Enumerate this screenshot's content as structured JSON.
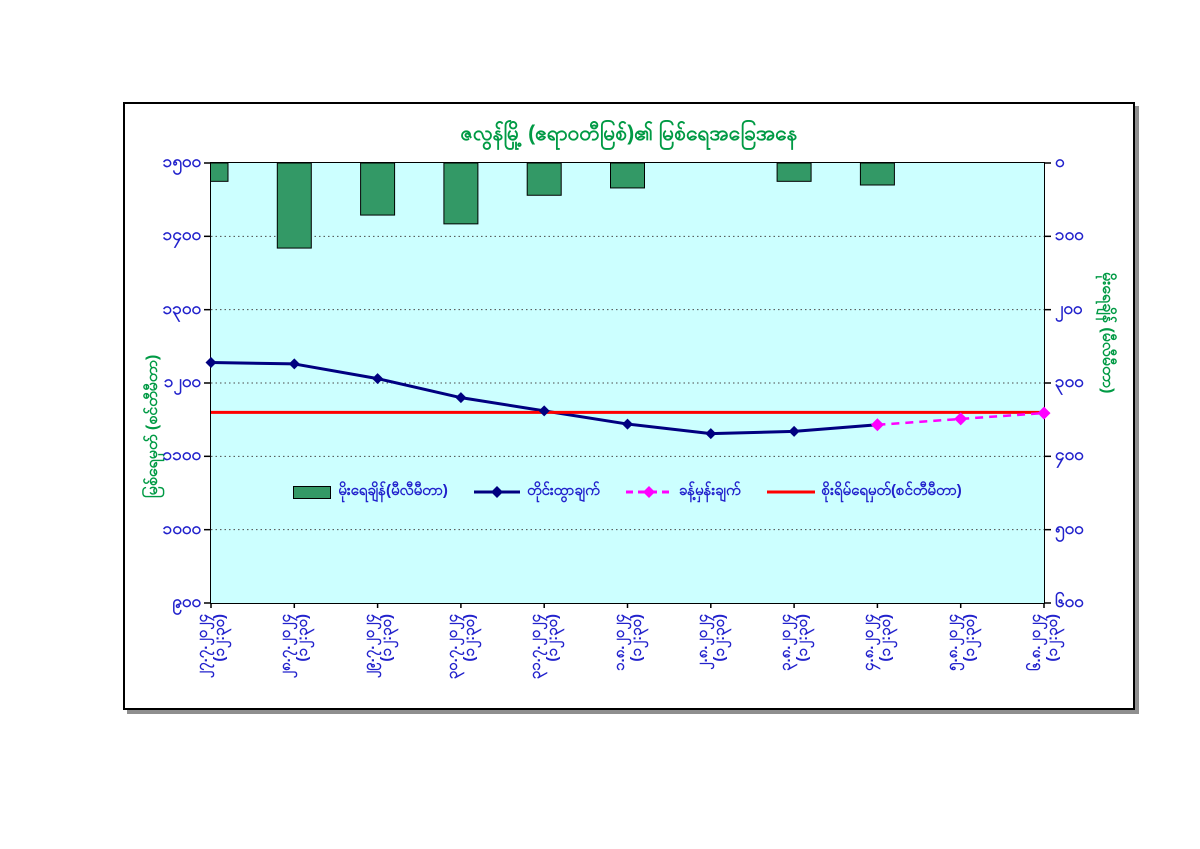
{
  "colors": {
    "title_green": "#009A44",
    "axis_label_blue": "#2222CC",
    "plot_background": "#CCFFFF",
    "bar_green": "#339966",
    "observed_navy": "#000080",
    "forecast_magenta": "#FF00FF",
    "danger_red": "#FF0000"
  },
  "chart_data": {
    "type": "bar+line combo",
    "title": "ဇလွန်မြို့ (ဧရာဝတီမြစ်)၏ မြစ်ရေအခြေအနေ",
    "plot_background": "#CCFFFF",
    "grid": "horizontal dotted lines every 100 units",
    "legend_position": "inside bottom center",
    "categories": [
      "၂၇.၇.၂၀၂၄",
      "၂၈.၇.၂၀၂၄",
      "၂၉.၇.၂၀၂၄",
      "၃၀.၇.၂၀၂၄",
      "၃၁.၇.၂၀၂၄",
      "၁.၈.၂၀၂၄",
      "၂.၈.၂၀၂၄",
      "၃.၈.၂၀၂၄",
      "၄.၈.၂၀၂၄",
      "၅.၈.၂၀၂၄",
      "၆.၈.၂၀၂၄"
    ],
    "category_time_sublabel": "(၁၂:၃၀)",
    "x_tick_label_rotation_deg": 90,
    "left_axis": {
      "title": "မြစ်ရေမှတ် (စင်တီမီတာ)",
      "min": 900,
      "max": 1500,
      "step": 100,
      "tick_labels": [
        "၁၅၀၀",
        "၁၄၀၀",
        "၁၃၀၀",
        "၁၂၀၀",
        "၁၁၀၀",
        "၁၀၀၀",
        "၉၀၀"
      ]
    },
    "right_axis": {
      "title": "မိုးရေချိန် (မီလီမီတာ)",
      "min": 0,
      "max": 600,
      "step": 100,
      "direction": "increases downward (bars hang from top)",
      "tick_labels": [
        "၀",
        "၁၀၀",
        "၂၀၀",
        "၃၀၀",
        "၄၀၀",
        "၅၀၀",
        "၆၀၀"
      ]
    },
    "series": [
      {
        "name": "မိုးရေချိန်(မီလီမီတာ)",
        "type": "bar",
        "axis": "right",
        "color": "#339966",
        "values": [
          25,
          116,
          71,
          83,
          44,
          34,
          0,
          25,
          30,
          0,
          0
        ]
      },
      {
        "name": "တိုင်းထွာချက်",
        "type": "line",
        "axis": "left",
        "color": "#000080",
        "marker": "diamond",
        "values": [
          1228,
          1226,
          1206,
          1180,
          1162,
          1144,
          1131,
          1134,
          1143,
          null,
          null
        ]
      },
      {
        "name": "ခန့်မှန်းချက်",
        "type": "line",
        "style": "dashed",
        "axis": "left",
        "color": "#FF00FF",
        "marker": "diamond",
        "values": [
          null,
          null,
          null,
          null,
          null,
          null,
          null,
          null,
          1143,
          1151,
          1159
        ]
      },
      {
        "name": "စိုးရိမ်ရေမှတ်(စင်တီမီတာ)",
        "type": "horizontal-line",
        "axis": "left",
        "color": "#FF0000",
        "value": 1160
      }
    ]
  }
}
